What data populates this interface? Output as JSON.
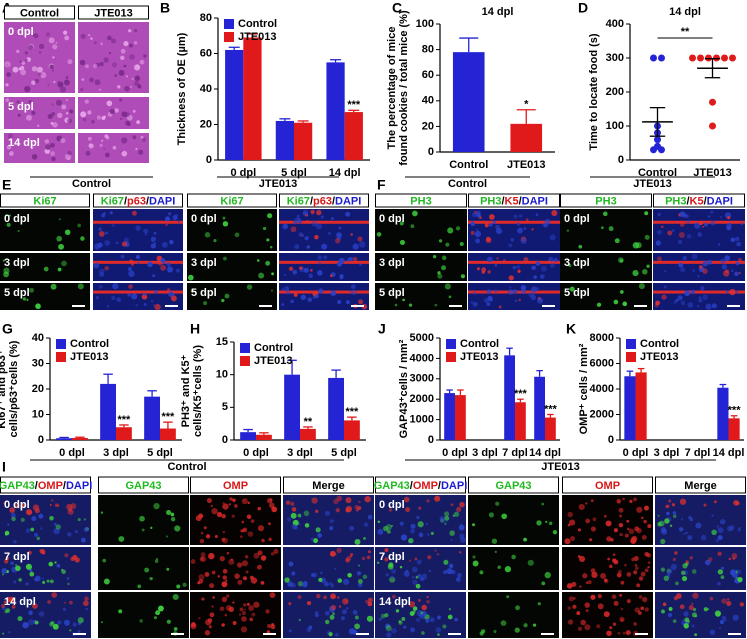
{
  "chart_data": [
    {
      "panel": "B",
      "type": "bar",
      "ylabel": "Thickness of OE (µm)",
      "categories": [
        "0 dpl",
        "5 dpl",
        "14 dpl"
      ],
      "series": [
        {
          "name": "Control",
          "color": "#2424d4",
          "values": [
            62,
            22,
            55
          ],
          "errors": [
            1.5,
            1.2,
            1.5
          ]
        },
        {
          "name": "JTE013",
          "color": "#e01a1a",
          "values": [
            69,
            21,
            27
          ],
          "errors": [
            2,
            1,
            1
          ],
          "significance": [
            null,
            null,
            "***"
          ]
        }
      ],
      "ylim": [
        0,
        80
      ],
      "yticks": [
        0,
        20,
        40,
        60,
        80
      ],
      "legend": "top-left"
    },
    {
      "panel": "C",
      "type": "bar",
      "title": "14 dpl",
      "ylabel": [
        "The percentage of mice",
        "found cookies / total mice (%)"
      ],
      "categories": [
        "Control",
        "JTE013"
      ],
      "series": [
        {
          "colors": [
            "#2424d4",
            "#e01a1a"
          ],
          "values": [
            78,
            22
          ],
          "errors": [
            11,
            11
          ],
          "significance": [
            null,
            "*"
          ]
        }
      ],
      "ylim": [
        0,
        100
      ],
      "yticks": [
        0,
        20,
        40,
        60,
        80,
        100
      ]
    },
    {
      "panel": "D",
      "type": "dot",
      "title": "14 dpl",
      "ylabel": "Time to locate food (s)",
      "categories": [
        "Control",
        "JTE013"
      ],
      "colors": [
        "#2424d4",
        "#e01a1a"
      ],
      "points": [
        [
          300,
          300,
          100,
          80,
          60,
          40,
          30,
          30
        ],
        [
          300,
          300,
          300,
          300,
          300,
          300,
          170,
          100
        ]
      ],
      "means": [
        112,
        270
      ],
      "errors": [
        42,
        28
      ],
      "comparison": "**",
      "ylim": [
        0,
        400
      ],
      "yticks": [
        0,
        100,
        200,
        300,
        400
      ]
    },
    {
      "panel": "G",
      "type": "bar",
      "ylabel": [
        "Ki67⁺ and p63⁺",
        "cells/p63⁺cells (%)"
      ],
      "categories": [
        "0 dpl",
        "3 dpl",
        "5 dpl"
      ],
      "series": [
        {
          "name": "Control",
          "color": "#2424d4",
          "values": [
            0.7,
            22,
            17
          ],
          "errors": [
            0.3,
            3.8,
            2.3
          ]
        },
        {
          "name": "JTE013",
          "color": "#e01a1a",
          "values": [
            0.8,
            5,
            4.5
          ],
          "errors": [
            0.3,
            0.9,
            2.5
          ],
          "significance": [
            null,
            "***",
            "***"
          ]
        }
      ],
      "ylim": [
        0,
        40
      ],
      "yticks": [
        0,
        10,
        20,
        30,
        40
      ],
      "legend": "top-left"
    },
    {
      "panel": "H",
      "type": "bar",
      "ylabel": [
        "PH3⁺ and K5⁺",
        "cells/K5⁺cells (%)"
      ],
      "categories": [
        "0 dpl",
        "3 dpl",
        "5 dpl"
      ],
      "series": [
        {
          "name": "Control",
          "color": "#2424d4",
          "values": [
            1.2,
            10,
            9.5
          ],
          "errors": [
            0.4,
            2.2,
            1.2
          ]
        },
        {
          "name": "JTE013",
          "color": "#e01a1a",
          "values": [
            0.8,
            1.7,
            3
          ],
          "errors": [
            0.3,
            0.3,
            0.5
          ],
          "significance": [
            null,
            "**",
            "***"
          ]
        }
      ],
      "ylim": [
        0,
        15
      ],
      "yticks": [
        0,
        5,
        10,
        15
      ],
      "legend": "top-left"
    },
    {
      "panel": "J",
      "type": "bar",
      "ylabel": "GAP43⁺cells / mm²",
      "categories": [
        "0 dpl",
        "3 dpl",
        "7 dpl",
        "14 dpl"
      ],
      "series": [
        {
          "name": "Control",
          "color": "#2424d4",
          "values": [
            2300,
            null,
            4150,
            3100
          ],
          "errors": [
            150,
            null,
            350,
            300
          ]
        },
        {
          "name": "JTE013",
          "color": "#e01a1a",
          "values": [
            2200,
            null,
            1850,
            1100
          ],
          "errors": [
            250,
            null,
            150,
            150
          ],
          "significance": [
            null,
            null,
            "***",
            "***"
          ]
        }
      ],
      "ylim": [
        0,
        5000
      ],
      "yticks": [
        0,
        1000,
        2000,
        3000,
        4000,
        5000
      ],
      "legend": "top-left"
    },
    {
      "panel": "K",
      "type": "bar",
      "ylabel": "OMP⁺ cells / mm²",
      "categories": [
        "0 dpl",
        "3 dpl",
        "7 dpl",
        "14 dpl"
      ],
      "series": [
        {
          "name": "Control",
          "color": "#2424d4",
          "values": [
            5000,
            null,
            null,
            4100
          ],
          "errors": [
            400,
            null,
            null,
            250
          ]
        },
        {
          "name": "JTE013",
          "color": "#e01a1a",
          "values": [
            5300,
            null,
            null,
            1700
          ],
          "errors": [
            300,
            null,
            null,
            200
          ],
          "significance": [
            null,
            null,
            null,
            "***"
          ]
        }
      ],
      "ylim": [
        0,
        8000
      ],
      "yticks": [
        0,
        2000,
        4000,
        6000,
        8000
      ],
      "legend": "top-left"
    }
  ],
  "image_panels": [
    {
      "panel": "A",
      "columns": [
        [
          {
            "text": "Control"
          }
        ],
        [
          {
            "text": "JTE013"
          }
        ]
      ],
      "rows": [
        "0 dpl",
        "5 dpl",
        "14 dpl"
      ]
    },
    {
      "panel": "E",
      "groups": [
        "Control",
        "JTE013"
      ],
      "columns": [
        [
          {
            "text": "Ki67",
            "color": "#22b822"
          }
        ],
        [
          {
            "text": "Ki67",
            "color": "#22b822"
          },
          {
            "text": "/"
          },
          {
            "text": "p63",
            "color": "#d81818"
          },
          {
            "text": "/"
          },
          {
            "text": "DAPI",
            "color": "#1a1ad0"
          }
        ],
        [
          {
            "text": "Ki67",
            "color": "#22b822"
          }
        ],
        [
          {
            "text": "Ki67",
            "color": "#22b822"
          },
          {
            "text": "/"
          },
          {
            "text": "p63",
            "color": "#d81818"
          },
          {
            "text": "/"
          },
          {
            "text": "DAPI",
            "color": "#1a1ad0"
          }
        ]
      ],
      "rows": [
        "0 dpl",
        "3 dpl",
        "5 dpl"
      ]
    },
    {
      "panel": "F",
      "groups": [
        "Control",
        "JTE013"
      ],
      "columns": [
        [
          {
            "text": "PH3",
            "color": "#22b822"
          }
        ],
        [
          {
            "text": "PH3",
            "color": "#22b822"
          },
          {
            "text": "/"
          },
          {
            "text": "K5",
            "color": "#d81818"
          },
          {
            "text": "/"
          },
          {
            "text": "DAPI",
            "color": "#1a1ad0"
          }
        ],
        [
          {
            "text": "PH3",
            "color": "#22b822"
          }
        ],
        [
          {
            "text": "PH3",
            "color": "#22b822"
          },
          {
            "text": "/"
          },
          {
            "text": "K5",
            "color": "#d81818"
          },
          {
            "text": "/"
          },
          {
            "text": "DAPI",
            "color": "#1a1ad0"
          }
        ]
      ],
      "rows": [
        "0 dpl",
        "3 dpl",
        "5 dpl"
      ]
    },
    {
      "panel": "I",
      "groups": [
        "Control",
        "JTE013"
      ],
      "columns": [
        [
          {
            "text": "GAP43",
            "color": "#22b822"
          },
          {
            "text": "/"
          },
          {
            "text": "OMP",
            "color": "#d81818"
          },
          {
            "text": "/"
          },
          {
            "text": "DAPI",
            "color": "#1a1ad0"
          }
        ],
        [
          {
            "text": "GAP43",
            "color": "#22b822"
          }
        ],
        [
          {
            "text": "OMP",
            "color": "#d81818"
          }
        ],
        [
          {
            "text": "Merge"
          }
        ],
        [
          {
            "text": "GAP43",
            "color": "#22b822"
          },
          {
            "text": "/"
          },
          {
            "text": "OMP",
            "color": "#d81818"
          },
          {
            "text": "/"
          },
          {
            "text": "DAPI",
            "color": "#1a1ad0"
          }
        ],
        [
          {
            "text": "GAP43",
            "color": "#22b822"
          }
        ],
        [
          {
            "text": "OMP",
            "color": "#d81818"
          }
        ],
        [
          {
            "text": "Merge"
          }
        ]
      ],
      "rows": [
        "0 dpl",
        "7 dpl",
        "14 dpl"
      ]
    }
  ]
}
